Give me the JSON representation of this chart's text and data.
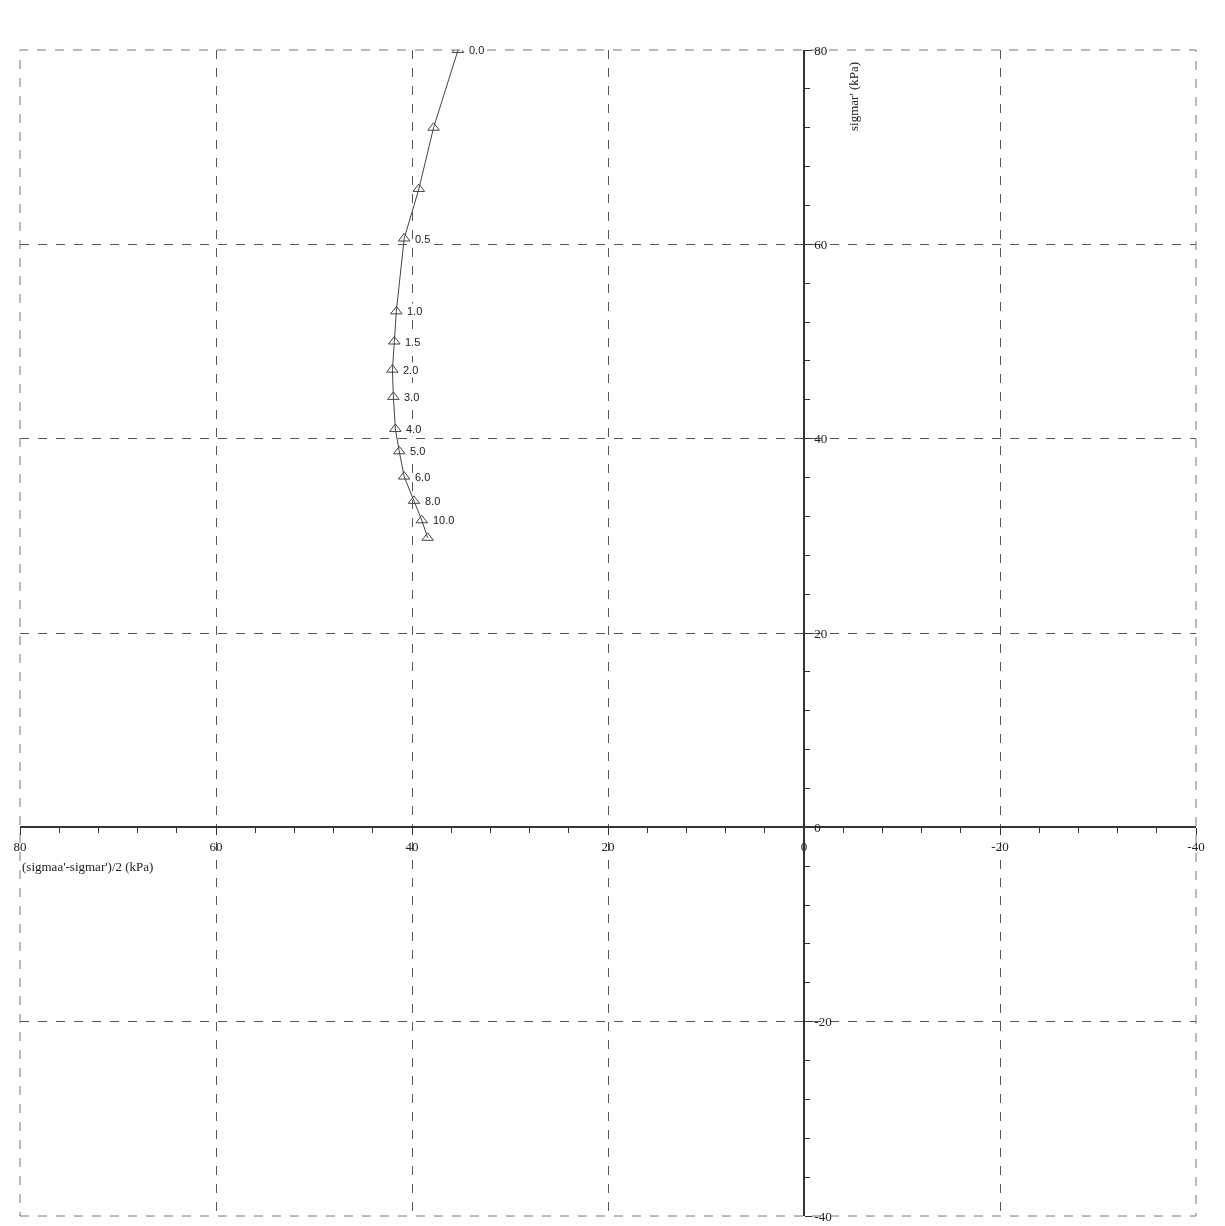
{
  "chart_data": {
    "type": "line",
    "xlabel": "(sigmaa'-sigmar')/2 (kPa)",
    "ylabel": "sigmar' (kPa)",
    "x": [
      35.3,
      37.8,
      39.3,
      40.8,
      41.6,
      41.8,
      42.0,
      41.9,
      41.7,
      41.3,
      40.8,
      39.8,
      39.0,
      38.4
    ],
    "series": [
      {
        "color": "#444444",
        "values": [
          80.0,
          72.0,
          65.7,
          60.6,
          53.1,
          50.0,
          47.1,
          44.3,
          41.0,
          38.7,
          36.1,
          33.6,
          31.6,
          29.8
        ]
      }
    ],
    "marker": "triangle",
    "line_style": "solid",
    "grid": true,
    "xlim": [
      80,
      -40
    ],
    "xticks": [
      80,
      60,
      40,
      20,
      0,
      -20,
      -40
    ],
    "ylim": [
      -40,
      80
    ],
    "yticks": [
      -40,
      -20,
      0,
      20,
      40,
      60,
      80
    ],
    "annotations": [
      {
        "text": "0.0",
        "x": 35.3,
        "y": 80.0
      },
      {
        "text": "0.5",
        "x": 40.8,
        "y": 60.6
      },
      {
        "text": "1.0",
        "x": 41.6,
        "y": 53.1
      },
      {
        "text": "1.5",
        "x": 41.8,
        "y": 50.0
      },
      {
        "text": "2.0",
        "x": 42.0,
        "y": 47.1
      },
      {
        "text": "3.0",
        "x": 41.9,
        "y": 44.3
      },
      {
        "text": "4.0",
        "x": 41.7,
        "y": 41.0
      },
      {
        "text": "5.0",
        "x": 41.3,
        "y": 38.7
      },
      {
        "text": "6.0",
        "x": 40.8,
        "y": 36.1
      },
      {
        "text": "8.0",
        "x": 39.8,
        "y": 33.6
      },
      {
        "text": "10.0",
        "x": 39.0,
        "y": 31.6
      }
    ]
  }
}
